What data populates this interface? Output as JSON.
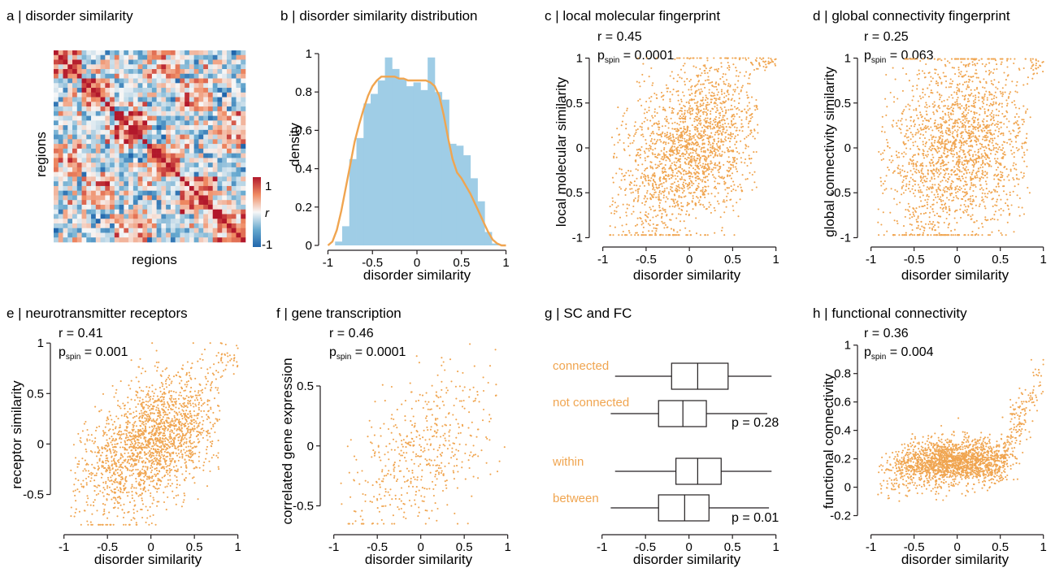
{
  "colors": {
    "orange": "#f0a550",
    "hist": "#9fcde6",
    "kde": "#f0a550",
    "axis": "#231f20",
    "cmap_neg": "#2c7bb6",
    "cmap_mid": "#f7f7f7",
    "cmap_pos": "#d7191c"
  },
  "panels": {
    "a": {
      "title": "a | disorder similarity",
      "ylabel": "regions",
      "xlabel": "regions",
      "cbar": {
        "max": "1",
        "min": "-1",
        "label": "r"
      }
    },
    "b": {
      "title": "b | disorder similarity distribution",
      "xlabel": "disorder similarity",
      "ylabel": "density",
      "xticks": [
        "-1",
        "-0.5",
        "0",
        "0.5",
        "1"
      ],
      "yticks": [
        "0",
        "0.2",
        "0.4",
        "0.6",
        "0.8",
        "1"
      ]
    },
    "c": {
      "title": "c | local molecular fingerprint",
      "xlabel": "disorder similarity",
      "ylabel": "local molecular similarity",
      "r": "r = 0.45",
      "p_prefix": "p",
      "p_sub": "spin",
      "p_val": " = 0.0001",
      "xticks": [
        "-1",
        "-0.5",
        "0",
        "0.5",
        "1"
      ],
      "yticks": [
        "-1",
        "-0.5",
        "0",
        "0.5",
        "1"
      ]
    },
    "d": {
      "title": "d | global connectivity fingerprint",
      "xlabel": "disorder similarity",
      "ylabel": "global connectivity similarity",
      "r": "r = 0.25",
      "p_prefix": "p",
      "p_sub": "spin",
      "p_val": " = 0.063",
      "xticks": [
        "-1",
        "-0.5",
        "0",
        "0.5",
        "1"
      ],
      "yticks": [
        "-1",
        "-0.5",
        "0",
        "0.5",
        "1"
      ]
    },
    "e": {
      "title": "e | neurotransmitter receptors",
      "xlabel": "disorder similarity",
      "ylabel": "receptor similarity",
      "r": "r = 0.41",
      "p_prefix": "p",
      "p_sub": "spin",
      "p_val": " = 0.001",
      "xticks": [
        "-1",
        "-0.5",
        "0",
        "0.5",
        "1"
      ],
      "yticks": [
        "-0.5",
        "0",
        "0.5",
        "1"
      ]
    },
    "f": {
      "title": "f | gene transcription",
      "xlabel": "disorder similarity",
      "ylabel": "correlated gene expression",
      "r": "r = 0.46",
      "p_prefix": "p",
      "p_sub": "spin",
      "p_val": " = 0.0001",
      "xticks": [
        "-1",
        "-0.5",
        "0",
        "0.5",
        "1"
      ],
      "yticks": [
        "-0.5",
        "0",
        "0.5"
      ]
    },
    "g": {
      "title": "g | SC and FC",
      "xlabel": "disorder similarity",
      "labels": [
        "connected",
        "not connected",
        "within",
        "between"
      ],
      "p1": "p = 0.28",
      "p2": "p = 0.01",
      "xticks": [
        "-1",
        "-0.5",
        "0",
        "0.5",
        "1"
      ]
    },
    "h": {
      "title": "h | functional connectivity",
      "xlabel": "disorder similarity",
      "ylabel": "functional connectivity",
      "r": "r = 0.36",
      "p_prefix": "p",
      "p_sub": "spin",
      "p_val": " = 0.004",
      "xticks": [
        "-1",
        "-0.5",
        "0",
        "0.5",
        "1"
      ],
      "yticks": [
        "-0.2",
        "0",
        "0.2",
        "0.4",
        "0.6",
        "0.8",
        "1"
      ]
    }
  },
  "chart_data": [
    {
      "panel": "a",
      "type": "heatmap",
      "title": "a | disorder similarity",
      "xlabel": "regions",
      "ylabel": "regions",
      "colorbar": {
        "range": [
          -1,
          1
        ],
        "label": "r"
      },
      "n": 41
    },
    {
      "panel": "b",
      "type": "bar",
      "title": "b | disorder similarity distribution",
      "xlabel": "disorder similarity",
      "ylabel": "density",
      "xlim": [
        -1.05,
        1.05
      ],
      "ylim": [
        0,
        1
      ],
      "bin_edges": [
        -0.92,
        -0.84,
        -0.76,
        -0.68,
        -0.6,
        -0.52,
        -0.44,
        -0.36,
        -0.28,
        -0.2,
        -0.12,
        -0.04,
        0.04,
        0.12,
        0.2,
        0.28,
        0.36,
        0.44,
        0.52,
        0.6,
        0.68,
        0.76,
        0.84,
        0.92
      ],
      "values": [
        0.02,
        0.1,
        0.45,
        0.56,
        0.74,
        0.79,
        0.86,
        0.98,
        0.92,
        0.87,
        0.83,
        0.85,
        0.81,
        0.98,
        0.8,
        0.76,
        0.53,
        0.52,
        0.47,
        0.35,
        0.23,
        0.07,
        0.01
      ],
      "kde": {
        "x": [
          -1.0,
          -0.95,
          -0.9,
          -0.85,
          -0.8,
          -0.75,
          -0.7,
          -0.65,
          -0.6,
          -0.55,
          -0.5,
          -0.45,
          -0.4,
          -0.35,
          -0.3,
          -0.25,
          -0.2,
          -0.15,
          -0.1,
          -0.05,
          0.0,
          0.05,
          0.1,
          0.15,
          0.2,
          0.25,
          0.3,
          0.35,
          0.4,
          0.45,
          0.5,
          0.55,
          0.6,
          0.65,
          0.7,
          0.75,
          0.8,
          0.85,
          0.9,
          0.95,
          1.0
        ],
        "y": [
          0.0,
          0.02,
          0.08,
          0.18,
          0.3,
          0.42,
          0.54,
          0.63,
          0.71,
          0.78,
          0.83,
          0.86,
          0.88,
          0.88,
          0.88,
          0.88,
          0.87,
          0.87,
          0.86,
          0.86,
          0.86,
          0.86,
          0.86,
          0.85,
          0.83,
          0.78,
          0.68,
          0.56,
          0.45,
          0.38,
          0.35,
          0.31,
          0.27,
          0.22,
          0.17,
          0.12,
          0.07,
          0.03,
          0.01,
          0.0,
          0.0
        ]
      }
    },
    {
      "panel": "c",
      "type": "scatter",
      "title": "c | local molecular fingerprint",
      "xlabel": "disorder similarity",
      "ylabel": "local molecular similarity",
      "xlim": [
        -1.1,
        1.05
      ],
      "ylim": [
        -1.05,
        1.05
      ],
      "r": 0.45,
      "n_points": 2000
    },
    {
      "panel": "d",
      "type": "scatter",
      "title": "d | global connectivity fingerprint",
      "xlabel": "disorder similarity",
      "ylabel": "global connectivity similarity",
      "xlim": [
        -1.1,
        1.05
      ],
      "ylim": [
        -1.05,
        1.05
      ],
      "r": 0.25,
      "n_points": 2000
    },
    {
      "panel": "e",
      "type": "scatter",
      "title": "e | neurotransmitter receptors",
      "xlabel": "disorder similarity",
      "ylabel": "receptor similarity",
      "xlim": [
        -1.1,
        1.05
      ],
      "ylim": [
        -0.85,
        1.05
      ],
      "r": 0.41,
      "n_points": 2000
    },
    {
      "panel": "f",
      "type": "scatter",
      "title": "f | gene transcription",
      "xlabel": "disorder similarity",
      "ylabel": "correlated gene expression",
      "xlim": [
        -1.1,
        1.05
      ],
      "ylim": [
        -0.7,
        0.9
      ],
      "r": 0.46,
      "n_points": 500
    },
    {
      "panel": "g",
      "type": "boxplot",
      "title": "g | SC and FC",
      "xlabel": "disorder similarity",
      "xlim": [
        -1.1,
        1.05
      ],
      "boxes": [
        {
          "name": "connected",
          "whisker_low": -0.85,
          "q1": -0.2,
          "median": 0.1,
          "q3": 0.45,
          "whisker_high": 0.95
        },
        {
          "name": "not connected",
          "whisker_low": -0.9,
          "q1": -0.35,
          "median": -0.07,
          "q3": 0.2,
          "whisker_high": 0.9
        },
        {
          "name": "within",
          "whisker_low": -0.85,
          "q1": -0.15,
          "median": 0.1,
          "q3": 0.37,
          "whisker_high": 0.95
        },
        {
          "name": "between",
          "whisker_low": -0.9,
          "q1": -0.35,
          "median": -0.05,
          "q3": 0.23,
          "whisker_high": 0.92
        }
      ],
      "p_values": [
        "p = 0.28",
        "p = 0.01"
      ]
    },
    {
      "panel": "h",
      "type": "scatter",
      "title": "h | functional connectivity",
      "xlabel": "disorder similarity",
      "ylabel": "functional connectivity",
      "xlim": [
        -1.1,
        1.05
      ],
      "ylim": [
        -0.3,
        1.05
      ],
      "r": 0.36,
      "n_points": 2000
    }
  ]
}
